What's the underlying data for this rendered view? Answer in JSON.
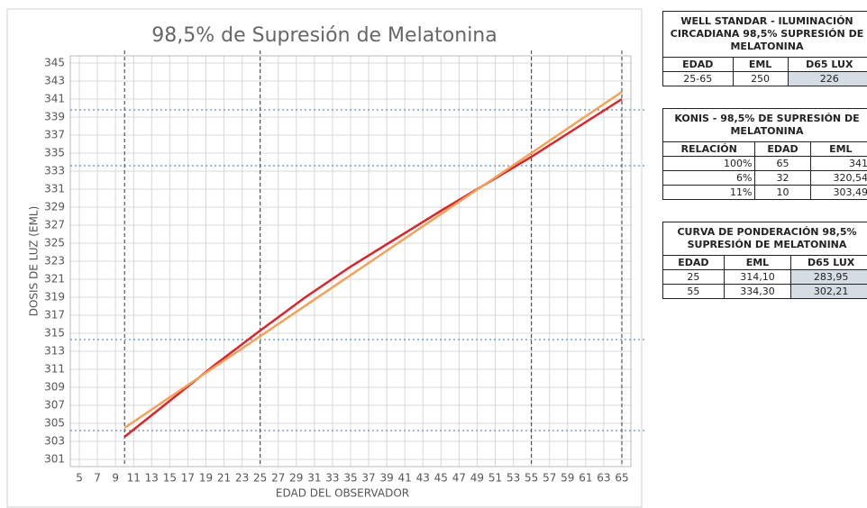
{
  "chart_data": {
    "type": "line",
    "title": "98,5% de Supresión de Melatonina",
    "xlabel": "EDAD DEL OBSERVADOR",
    "ylabel": "DOSIS DE LUZ (EML)",
    "xlim": [
      4,
      66
    ],
    "ylim": [
      300.2,
      345.8
    ],
    "xticks": [
      5,
      7,
      9,
      11,
      13,
      15,
      17,
      19,
      21,
      23,
      25,
      27,
      29,
      31,
      33,
      35,
      37,
      39,
      41,
      43,
      45,
      47,
      49,
      51,
      53,
      55,
      57,
      59,
      61,
      63,
      65
    ],
    "yticks": [
      301,
      303,
      305,
      307,
      309,
      311,
      313,
      315,
      317,
      319,
      321,
      323,
      325,
      327,
      329,
      331,
      333,
      335,
      337,
      339,
      341,
      343,
      345
    ],
    "grid": true,
    "vlines": [
      10,
      25,
      55,
      65
    ],
    "hlines": [
      304.2,
      314.3,
      333.6,
      339.8
    ],
    "series": [
      {
        "color": "#d9262b",
        "x": [
          10,
          15,
          20,
          25,
          30,
          35,
          40,
          45,
          50,
          55,
          60,
          65
        ],
        "values": [
          303.5,
          307.5,
          311.5,
          315.3,
          319,
          322.4,
          325.5,
          328.6,
          331.6,
          334.6,
          337.8,
          341
        ]
      },
      {
        "color": "#f4a25a",
        "x": [
          10,
          65
        ],
        "values": [
          304.5,
          341.8
        ]
      }
    ]
  },
  "tables": [
    {
      "title": "WELL STANDAR - ILUMINACIÓN CIRCADIANA 98,5% SUPRESIÓN DE MELATONINA",
      "header": [
        "EDAD",
        "EML",
        "D65 LUX"
      ],
      "rows": [
        [
          "25-65",
          "250",
          "226"
        ]
      ]
    },
    {
      "title": "KONIS - 98,5% DE SUPRESIÓN DE MELATONINA",
      "header": [
        "RELACIÓN",
        "EDAD",
        "EML"
      ],
      "rows": [
        [
          "100%",
          "65",
          "341"
        ],
        [
          "6%",
          "32",
          "320,54"
        ],
        [
          "11%",
          "10",
          "303,49"
        ]
      ]
    },
    {
      "title": "CURVA DE PONDERACIÓN 98,5% SUPRESIÓN DE MELATONINA",
      "header": [
        "EDAD",
        "EML",
        "D65 LUX"
      ],
      "rows": [
        [
          "25",
          "314,10",
          "283,95"
        ],
        [
          "55",
          "334,30",
          "302,21"
        ]
      ]
    }
  ]
}
